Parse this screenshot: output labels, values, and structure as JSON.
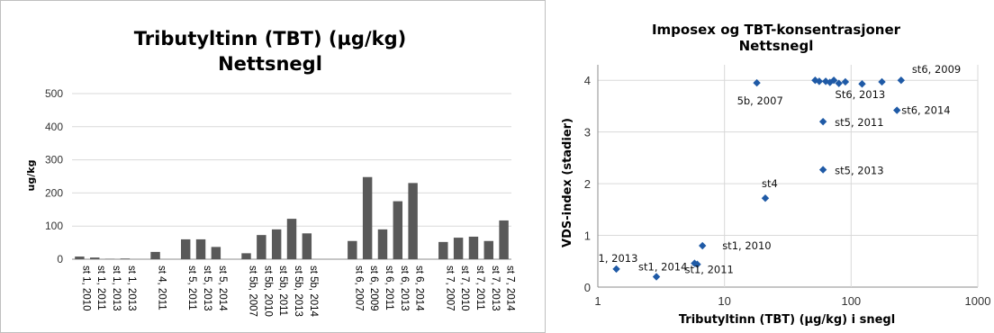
{
  "chart_data": [
    {
      "type": "bar",
      "title": "Tributyltinn (TBT) (µg/kg)",
      "subtitle": "Nettsnegl",
      "ylabel": "ug/kg",
      "xlabel": "",
      "ylim": [
        0,
        500
      ],
      "yticks": [
        0,
        100,
        200,
        300,
        400,
        500
      ],
      "grid": true,
      "legend": "none",
      "color": "#595959",
      "categories": [
        "st 1, 2010",
        "st 1, 2011",
        "st 1, 2013",
        "st 1, 2013",
        "",
        "st 4, 2011",
        "",
        "st 5, 2011",
        "st 5, 2013",
        "st 5, 2014",
        "",
        "st 5b, 2007",
        "st 5b, 2010",
        "st 5b, 2011",
        "st 5b, 2013",
        "st 5b, 2014",
        "",
        "",
        "st 6, 2007",
        "st 6, 2009",
        "st 6, 2011",
        "st 6, 2013",
        "st 6, 2014",
        "",
        "st 7, 2007",
        "st 7, 2010",
        "st 7, 2011",
        "st 7, 2013",
        "st 7, 2014"
      ],
      "values": [
        8,
        5,
        1,
        2,
        null,
        22,
        null,
        60,
        60,
        37,
        null,
        18,
        73,
        90,
        122,
        78,
        null,
        null,
        55,
        248,
        90,
        175,
        230,
        null,
        52,
        65,
        68,
        55,
        117
      ]
    },
    {
      "type": "scatter",
      "title": "Imposex og TBT-konsentrasjoner",
      "subtitle": "Nettsnegl",
      "xlabel": "Tributyltinn (TBT) (µg/kg) i snegl",
      "ylabel": "VDS-index (stadier)",
      "xscale": "log",
      "xlim": [
        1,
        1000
      ],
      "xticks": [
        1,
        10,
        100,
        1000
      ],
      "xtick_labels": [
        "1",
        "10",
        "100",
        "1000"
      ],
      "ylim": [
        0,
        4.3
      ],
      "yticks": [
        0,
        1,
        2,
        3,
        4
      ],
      "grid": true,
      "legend": "none",
      "color": "#1f5aa6",
      "points": [
        {
          "x": 1.4,
          "y": 0.35
        },
        {
          "x": 2.9,
          "y": 0.2
        },
        {
          "x": 5.8,
          "y": 0.46
        },
        {
          "x": 6.1,
          "y": 0.44
        },
        {
          "x": 6.7,
          "y": 0.8
        },
        {
          "x": 21,
          "y": 1.72
        },
        {
          "x": 18,
          "y": 3.95
        },
        {
          "x": 60,
          "y": 2.27
        },
        {
          "x": 60,
          "y": 3.2
        },
        {
          "x": 52,
          "y": 4.0
        },
        {
          "x": 56,
          "y": 3.98
        },
        {
          "x": 63,
          "y": 3.98
        },
        {
          "x": 68,
          "y": 3.96
        },
        {
          "x": 73,
          "y": 4.0
        },
        {
          "x": 80,
          "y": 3.94
        },
        {
          "x": 90,
          "y": 3.97
        },
        {
          "x": 122,
          "y": 3.93
        },
        {
          "x": 175,
          "y": 3.97
        },
        {
          "x": 230,
          "y": 3.42
        },
        {
          "x": 248,
          "y": 4.0
        }
      ],
      "annotations": [
        {
          "text": "1, 2013",
          "x": 1.4,
          "y": 0.35
        },
        {
          "text": "st1, 2014",
          "x": 2.9,
          "y": 0.2
        },
        {
          "text": "st1, 2011",
          "x": 6.1,
          "y": 0.44
        },
        {
          "text": "st1, 2010",
          "x": 6.7,
          "y": 0.8
        },
        {
          "text": "st4",
          "x": 21,
          "y": 1.72
        },
        {
          "text": "5b, 2007",
          "x": 18,
          "y": 3.95
        },
        {
          "text": "st5, 2013",
          "x": 60,
          "y": 2.27
        },
        {
          "text": "st5, 2011",
          "x": 60,
          "y": 3.2
        },
        {
          "text": "st6, 2014",
          "x": 230,
          "y": 3.42
        },
        {
          "text": "St6, 2013",
          "x": 175,
          "y": 3.97
        },
        {
          "text": "st6, 2009",
          "x": 248,
          "y": 4.0
        }
      ]
    }
  ]
}
